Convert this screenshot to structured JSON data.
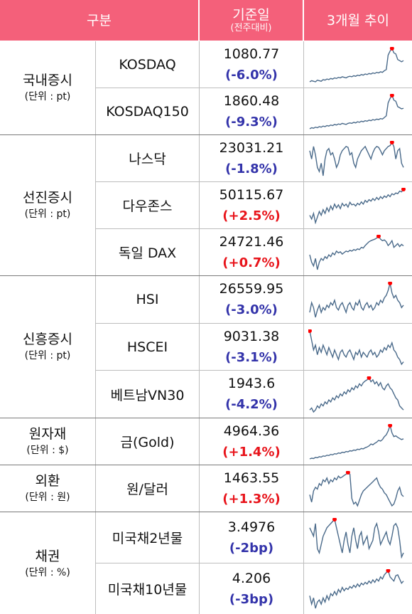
{
  "header": {
    "category": "구분",
    "base_date": "기준일",
    "base_date_sub": "(전주대비)",
    "trend": "3개월 추이"
  },
  "colors": {
    "header_bg": "#f4607a",
    "up": "#e8141b",
    "down": "#3333aa",
    "line": "#4a6a8a",
    "marker": "#ff0000"
  },
  "groups": [
    {
      "name": "국내증시",
      "unit": "(단위 : pt)",
      "rows": [
        {
          "name": "KOSDAQ",
          "value": "1080.77",
          "change": "(-6.0%)",
          "dir": "down",
          "trend": [
            40,
            42,
            41,
            40,
            43,
            42,
            41,
            44,
            43,
            45,
            44,
            46,
            45,
            47,
            46,
            48,
            47,
            49,
            48,
            47,
            49,
            50,
            49,
            51,
            50,
            52,
            51,
            53,
            52,
            54,
            53,
            55,
            54,
            56,
            55,
            57,
            56,
            58,
            57,
            60,
            62,
            88,
            95,
            100,
            92,
            90,
            80,
            78,
            76,
            78
          ],
          "peak_index": 43
        },
        {
          "name": "KOSDAQ150",
          "value": "1860.48",
          "change": "(-9.3%)",
          "dir": "down",
          "trend": [
            38,
            40,
            39,
            41,
            40,
            42,
            41,
            43,
            42,
            44,
            43,
            45,
            44,
            46,
            45,
            47,
            46,
            48,
            47,
            46,
            48,
            49,
            48,
            50,
            49,
            51,
            50,
            52,
            51,
            53,
            52,
            54,
            53,
            55,
            54,
            56,
            55,
            57,
            56,
            59,
            62,
            86,
            94,
            100,
            91,
            89,
            79,
            77,
            75,
            76
          ],
          "peak_index": 43
        }
      ]
    },
    {
      "name": "선진증시",
      "unit": "(단위 : pt)",
      "rows": [
        {
          "name": "나스닥",
          "value": "23031.21",
          "change": "(-1.8%)",
          "dir": "down",
          "trend": [
            80,
            60,
            90,
            70,
            40,
            30,
            50,
            20,
            60,
            80,
            85,
            70,
            75,
            60,
            40,
            50,
            70,
            80,
            85,
            90,
            88,
            70,
            75,
            50,
            40,
            60,
            70,
            80,
            85,
            90,
            80,
            70,
            60,
            75,
            85,
            90,
            88,
            80,
            70,
            80,
            85,
            90,
            92,
            100,
            90,
            60,
            80,
            85,
            50,
            40
          ],
          "peak_index": 43
        },
        {
          "name": "다우존스",
          "value": "50115.67",
          "change": "(+2.5%)",
          "dir": "up",
          "trend": [
            30,
            20,
            35,
            10,
            25,
            40,
            30,
            45,
            35,
            50,
            40,
            55,
            45,
            60,
            50,
            58,
            48,
            62,
            55,
            60,
            52,
            65,
            58,
            60,
            55,
            62,
            58,
            66,
            60,
            70,
            65,
            72,
            68,
            75,
            70,
            78,
            72,
            80,
            75,
            82,
            78,
            85,
            80,
            88,
            85,
            90,
            88,
            95,
            93,
            100
          ],
          "peak_index": 49
        },
        {
          "name": "독일 DAX",
          "value": "24721.46",
          "change": "(+0.7%)",
          "dir": "up",
          "trend": [
            50,
            30,
            20,
            40,
            10,
            30,
            40,
            35,
            45,
            40,
            50,
            45,
            55,
            50,
            60,
            55,
            58,
            52,
            56,
            60,
            58,
            62,
            60,
            64,
            62,
            66,
            64,
            70,
            68,
            75,
            80,
            85,
            88,
            90,
            92,
            95,
            100,
            92,
            88,
            90,
            85,
            75,
            80,
            88,
            70,
            75,
            80,
            72,
            78,
            74
          ],
          "peak_index": 36
        }
      ]
    },
    {
      "name": "신흥증시",
      "unit": "(단위 : pt)",
      "rows": [
        {
          "name": "HSI",
          "value": "26559.95",
          "change": "(-3.0%)",
          "dir": "down",
          "trend": [
            40,
            60,
            50,
            30,
            45,
            55,
            40,
            50,
            45,
            55,
            50,
            60,
            55,
            65,
            50,
            45,
            55,
            60,
            50,
            40,
            55,
            60,
            50,
            45,
            60,
            55,
            65,
            50,
            45,
            55,
            60,
            50,
            55,
            45,
            50,
            60,
            55,
            65,
            60,
            70,
            75,
            85,
            100,
            80,
            70,
            75,
            65,
            60,
            50,
            55
          ],
          "peak_index": 42
        },
        {
          "name": "HSCEI",
          "value": "9031.38",
          "change": "(-3.1%)",
          "dir": "down",
          "trend": [
            100,
            80,
            60,
            70,
            50,
            65,
            55,
            70,
            60,
            50,
            65,
            55,
            45,
            60,
            50,
            40,
            55,
            60,
            50,
            45,
            55,
            60,
            50,
            40,
            55,
            50,
            60,
            45,
            55,
            50,
            45,
            55,
            60,
            50,
            55,
            45,
            50,
            60,
            55,
            65,
            60,
            70,
            65,
            75,
            60,
            55,
            45,
            40,
            30,
            35
          ],
          "peak_index": 0
        },
        {
          "name": "베트남VN30",
          "value": "1943.6",
          "change": "(-4.2%)",
          "dir": "down",
          "trend": [
            20,
            25,
            15,
            20,
            30,
            25,
            35,
            30,
            40,
            35,
            45,
            40,
            50,
            45,
            55,
            50,
            60,
            55,
            65,
            60,
            70,
            65,
            75,
            70,
            80,
            75,
            85,
            80,
            88,
            92,
            95,
            100,
            90,
            95,
            85,
            90,
            80,
            88,
            75,
            70,
            80,
            85,
            75,
            70,
            60,
            50,
            45,
            30,
            25,
            20
          ],
          "peak_index": 31
        }
      ]
    },
    {
      "name": "원자재",
      "unit": "(단위 : $)",
      "rows": [
        {
          "name": "금(Gold)",
          "value": "4964.36",
          "change": "(+1.4%)",
          "dir": "up",
          "trend": [
            10,
            12,
            11,
            14,
            13,
            16,
            15,
            18,
            17,
            20,
            19,
            22,
            21,
            24,
            23,
            26,
            25,
            28,
            27,
            30,
            29,
            32,
            31,
            34,
            33,
            36,
            35,
            38,
            37,
            40,
            42,
            45,
            50,
            48,
            52,
            55,
            60,
            58,
            62,
            70,
            75,
            85,
            100,
            80,
            70,
            72,
            68,
            65,
            62,
            64
          ],
          "peak_index": 42
        }
      ]
    },
    {
      "name": "외환",
      "unit": "(단위 : 원)",
      "rows": [
        {
          "name": "원/달러",
          "value": "1463.55",
          "change": "(+1.3%)",
          "dir": "up",
          "trend": [
            40,
            20,
            50,
            60,
            55,
            70,
            65,
            80,
            75,
            85,
            70,
            80,
            75,
            85,
            80,
            90,
            85,
            88,
            92,
            95,
            100,
            95,
            30,
            15,
            20,
            10,
            25,
            40,
            50,
            55,
            60,
            65,
            70,
            75,
            80,
            85,
            70,
            60,
            55,
            45,
            40,
            30,
            20,
            10,
            15,
            30,
            50,
            60,
            40,
            35
          ],
          "peak_index": 20
        },
        {
          "name": "미국채2년물",
          "value": "3.4976",
          "change": "(-2bp)",
          "dir": "down",
          "trend": [
            80,
            70,
            60,
            90,
            30,
            20,
            40,
            60,
            70,
            80,
            85,
            90,
            95,
            100,
            80,
            60,
            40,
            20,
            50,
            70,
            40,
            20,
            60,
            80,
            50,
            30,
            60,
            70,
            40,
            50,
            60,
            30,
            40,
            50,
            80,
            90,
            70,
            40,
            50,
            60,
            70,
            50,
            40,
            60,
            85,
            90,
            80,
            50,
            10,
            20
          ],
          "peak_index": 13
        },
        {
          "name": "미국채10년물",
          "value": "4.206",
          "change": "(-3bp)",
          "dir": "down",
          "trend": [
            40,
            20,
            35,
            10,
            25,
            30,
            20,
            35,
            25,
            40,
            30,
            45,
            40,
            50,
            42,
            55,
            48,
            60,
            52,
            58,
            55,
            62,
            58,
            65,
            60,
            68,
            62,
            70,
            66,
            72,
            68,
            75,
            70,
            78,
            72,
            80,
            75,
            85,
            80,
            90,
            95,
            100,
            85,
            80,
            75,
            88,
            90,
            80,
            70,
            75
          ],
          "peak_index": 41
        }
      ]
    }
  ],
  "bond_group": {
    "name": "채권",
    "unit": "(단위 : %)"
  }
}
